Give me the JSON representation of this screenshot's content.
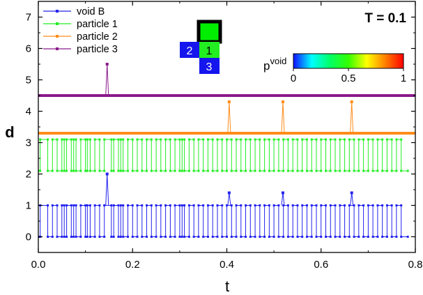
{
  "chart_data": {
    "type": "line",
    "xlabel": "t",
    "ylabel": "d",
    "xlim": [
      0,
      0.8
    ],
    "ylim": [
      -0.5,
      7.5
    ],
    "xticks": [
      0.0,
      0.2,
      0.4,
      0.6,
      0.8
    ],
    "xtick_labels": [
      "0.0",
      "0.2",
      "0.4",
      "0.6",
      "0.8"
    ],
    "yticks": [
      0,
      1,
      2,
      3,
      4,
      5,
      6,
      7
    ],
    "ytick_labels": [
      "0",
      "1",
      "2",
      "3",
      "4",
      "5",
      "6",
      "7"
    ],
    "grid": false,
    "annotation": "T = 0.1",
    "legend": {
      "position": "top-left",
      "entries": [
        "void B",
        "particle 1",
        "particle 2",
        "particle 3"
      ]
    },
    "colorbar": {
      "label_base": "p",
      "label_sup": "void",
      "range": [
        0,
        1
      ],
      "ticks": [
        0,
        0.5,
        1
      ],
      "tick_labels": [
        "0",
        "0.5",
        "1"
      ],
      "stops": [
        "#1010ff",
        "#00ffff",
        "#00ff66",
        "#33ff00",
        "#ffff00",
        "#ff8000",
        "#ff0000"
      ]
    },
    "inset_labels": [
      "1",
      "2",
      "3"
    ],
    "series": [
      {
        "name": "void B",
        "color": "#2323ee",
        "low": 0,
        "high": 1,
        "switch_times": [
          0.004,
          0.02,
          0.03,
          0.04,
          0.05,
          0.055,
          0.06,
          0.07,
          0.075,
          0.08,
          0.09,
          0.1,
          0.104,
          0.11,
          0.12,
          0.13,
          0.14,
          0.155,
          0.16,
          0.17,
          0.175,
          0.18,
          0.19,
          0.2,
          0.21,
          0.22,
          0.23,
          0.24,
          0.25,
          0.26,
          0.27,
          0.28,
          0.29,
          0.3,
          0.305,
          0.31,
          0.32,
          0.33,
          0.34,
          0.35,
          0.36,
          0.37,
          0.38,
          0.39,
          0.4,
          0.41,
          0.42,
          0.43,
          0.44,
          0.45,
          0.46,
          0.47,
          0.48,
          0.49,
          0.5,
          0.51,
          0.52,
          0.53,
          0.54,
          0.55,
          0.56,
          0.57,
          0.58,
          0.59,
          0.6,
          0.61,
          0.62,
          0.63,
          0.64,
          0.65,
          0.66,
          0.67,
          0.68,
          0.69,
          0.7,
          0.71,
          0.72,
          0.73,
          0.74,
          0.75,
          0.76,
          0.77
        ],
        "spikes": [
          {
            "t": 0.146,
            "value": 2
          },
          {
            "t": 0.405,
            "value": 1.4
          },
          {
            "t": 0.519,
            "value": 1.4
          },
          {
            "t": 0.665,
            "value": 1.4
          }
        ]
      },
      {
        "name": "particle 1",
        "color": "#22ee22",
        "low": 2.1,
        "high": 3.1,
        "switch_times": [
          0.004,
          0.02,
          0.03,
          0.04,
          0.05,
          0.055,
          0.06,
          0.07,
          0.075,
          0.08,
          0.09,
          0.1,
          0.104,
          0.11,
          0.12,
          0.13,
          0.14,
          0.155,
          0.16,
          0.17,
          0.175,
          0.18,
          0.19,
          0.2,
          0.21,
          0.22,
          0.23,
          0.24,
          0.25,
          0.26,
          0.27,
          0.28,
          0.29,
          0.3,
          0.305,
          0.31,
          0.32,
          0.33,
          0.34,
          0.35,
          0.36,
          0.37,
          0.38,
          0.39,
          0.4,
          0.41,
          0.42,
          0.43,
          0.44,
          0.45,
          0.46,
          0.47,
          0.48,
          0.49,
          0.5,
          0.51,
          0.52,
          0.53,
          0.54,
          0.55,
          0.56,
          0.57,
          0.58,
          0.59,
          0.6,
          0.61,
          0.62,
          0.63,
          0.64,
          0.65,
          0.66,
          0.67,
          0.68,
          0.69,
          0.7,
          0.71,
          0.72,
          0.73,
          0.74,
          0.75,
          0.76,
          0.77
        ],
        "spikes": []
      },
      {
        "name": "particle 2",
        "color": "#ff8c1a",
        "low": 3.3,
        "high": 3.3,
        "switch_times": [],
        "spikes": [
          {
            "t": 0.405,
            "value": 4.3
          },
          {
            "t": 0.519,
            "value": 4.3
          },
          {
            "t": 0.665,
            "value": 4.3
          }
        ]
      },
      {
        "name": "particle 3",
        "color": "#8b1a8b",
        "low": 4.5,
        "high": 4.5,
        "switch_times": [],
        "spikes": [
          {
            "t": 0.146,
            "value": 5.5
          }
        ]
      }
    ]
  }
}
